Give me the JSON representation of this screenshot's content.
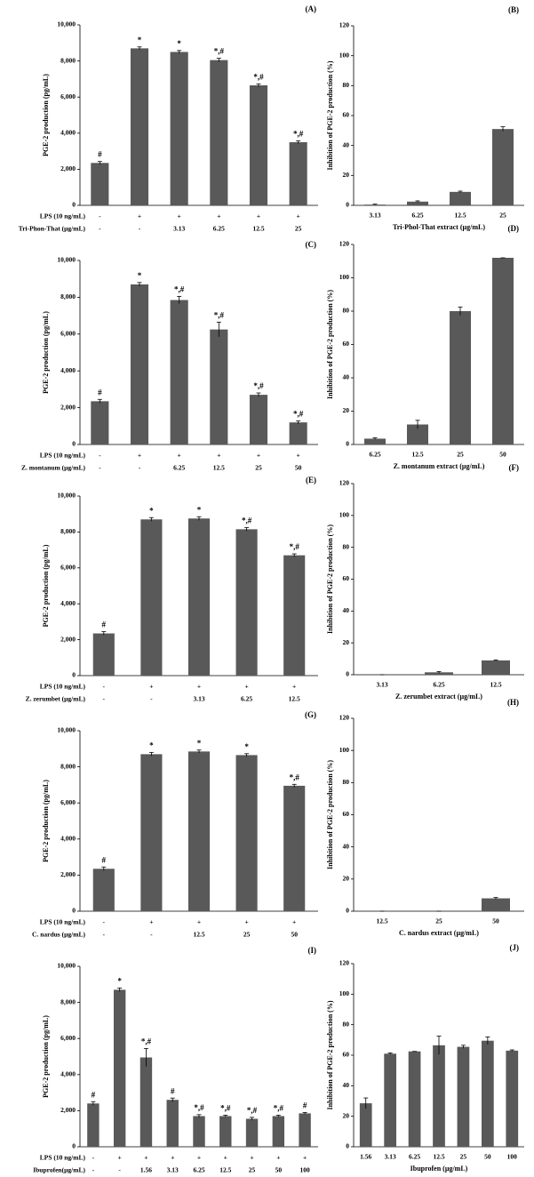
{
  "chart_data": [
    {
      "type": "bar",
      "panel": "(A)",
      "ylabel": "PGE-2 production (pg/mL)",
      "row_labels": [
        "LPS (10 ng/mL)",
        "Tri-Phon-That (µg/mL)"
      ],
      "lps": [
        "-",
        "+",
        "+",
        "+",
        "+",
        "+"
      ],
      "categories": [
        "-",
        "-",
        "3.13",
        "6.25",
        "12.5",
        "25"
      ],
      "values": [
        2350,
        8700,
        8500,
        8050,
        6650,
        3500
      ],
      "errors": [
        80,
        80,
        80,
        100,
        80,
        80
      ],
      "annotations": [
        "#",
        "*",
        "*",
        "*,#",
        "*,#",
        "*,#"
      ],
      "color": "#595959",
      "ylim": [
        0,
        10000
      ],
      "yticks": [
        0,
        {
          "value": 2000,
          "label": "2,000"
        },
        {
          "value": 4000,
          "label": "4,000"
        },
        {
          "value": 6000,
          "label": "6,000"
        },
        {
          "value": 8000,
          "label": "8,000"
        },
        {
          "value": 10000,
          "label": "10,000"
        }
      ]
    },
    {
      "type": "bar",
      "panel": "(B)",
      "ylabel": "Inhibition of PGE-2 production (%)",
      "xlabel": "Tri-Phol-That extract (µg/mL)",
      "categories": [
        "3.13",
        "6.25",
        "12.5",
        "25"
      ],
      "values": [
        0.5,
        2.5,
        9,
        51
      ],
      "errors": [
        0.3,
        0.5,
        0.5,
        1.5
      ],
      "color": "#595959",
      "ylim": [
        0,
        120
      ],
      "yticks": [
        0,
        20,
        40,
        60,
        80,
        100,
        120
      ]
    },
    {
      "type": "bar",
      "panel": "(C)",
      "ylabel": "PGE-2 production (pg/mL)",
      "row_labels": [
        "LPS (10 ng/mL)",
        "Z. montanum (µg/mL)"
      ],
      "lps": [
        "-",
        "+",
        "+",
        "+",
        "+",
        "+"
      ],
      "categories": [
        "-",
        "-",
        "6.25",
        "12.5",
        "25",
        "50"
      ],
      "values": [
        2350,
        8700,
        7850,
        6250,
        2700,
        1200
      ],
      "errors": [
        100,
        100,
        200,
        400,
        100,
        80
      ],
      "annotations": [
        "#",
        "*",
        "*,#",
        "*,#",
        "*,#",
        "*,#"
      ],
      "color": "#595959",
      "ylim": [
        0,
        10000
      ],
      "yticks": [
        0,
        {
          "value": 2000,
          "label": "2,000"
        },
        {
          "value": 4000,
          "label": "4,000"
        },
        {
          "value": 6000,
          "label": "6,000"
        },
        {
          "value": 8000,
          "label": "8,000"
        },
        {
          "value": 10000,
          "label": "10,000"
        }
      ]
    },
    {
      "type": "bar",
      "panel": "(D)",
      "ylabel": "Inhibition of PGE-2 production (%)",
      "xlabel": "Z. montanum extract (µg/mL)",
      "categories": [
        "6.25",
        "12.5",
        "25",
        "50"
      ],
      "values": [
        3.5,
        12,
        80,
        112
      ],
      "errors": [
        0.5,
        2.5,
        2.5,
        0
      ],
      "color": "#595959",
      "ylim": [
        0,
        120
      ],
      "yticks": [
        0,
        20,
        40,
        60,
        80,
        100,
        120
      ]
    },
    {
      "type": "bar",
      "panel": "(E)",
      "ylabel": "PGE-2 production (pg/mL)",
      "row_labels": [
        "LPS (10 ng/mL)",
        "Z. zerumbet (µg/mL)"
      ],
      "lps": [
        "-",
        "+",
        "+",
        "+",
        "+"
      ],
      "categories": [
        "-",
        "-",
        "3.13",
        "6.25",
        "12.5"
      ],
      "values": [
        2350,
        8700,
        8750,
        8150,
        6700
      ],
      "errors": [
        100,
        100,
        100,
        100,
        80
      ],
      "annotations": [
        "#",
        "*",
        "*",
        "*,#",
        "*,#"
      ],
      "color": "#595959",
      "ylim": [
        0,
        10000
      ],
      "yticks": [
        0,
        {
          "value": 2000,
          "label": "2,000"
        },
        {
          "value": 4000,
          "label": "4,000"
        },
        {
          "value": 6000,
          "label": "6,000"
        },
        {
          "value": 8000,
          "label": "8,000"
        },
        {
          "value": 10000,
          "label": "10,000"
        }
      ]
    },
    {
      "type": "bar",
      "panel": "(F)",
      "ylabel": "Inhibition of PGE-2 production (%)",
      "xlabel": "Z. zerumbet extract (µg/mL)",
      "categories": [
        "3.13",
        "6.25",
        "12.5"
      ],
      "values": [
        0,
        1.5,
        9
      ],
      "errors": [
        0,
        0.5,
        0.3
      ],
      "color": "#595959",
      "ylim": [
        0,
        120
      ],
      "yticks": [
        0,
        20,
        40,
        60,
        80,
        100,
        120
      ]
    },
    {
      "type": "bar",
      "panel": "(G)",
      "ylabel": "PGE-2 production (pg/mL)",
      "row_labels": [
        "LPS (10 ng/mL)",
        "C. nardus (µg/mL)"
      ],
      "lps": [
        "-",
        "+",
        "+",
        "+",
        "+"
      ],
      "categories": [
        "-",
        "-",
        "12.5",
        "25",
        "50"
      ],
      "values": [
        2350,
        8700,
        8850,
        8650,
        6950
      ],
      "errors": [
        100,
        100,
        80,
        80,
        80
      ],
      "annotations": [
        "#",
        "*",
        "*",
        "*",
        "*,#"
      ],
      "color": "#595959",
      "ylim": [
        0,
        10000
      ],
      "yticks": [
        0,
        {
          "value": 2000,
          "label": "2,000"
        },
        {
          "value": 4000,
          "label": "4,000"
        },
        {
          "value": 6000,
          "label": "6,000"
        },
        {
          "value": 8000,
          "label": "8,000"
        },
        {
          "value": 10000,
          "label": "10,000"
        }
      ]
    },
    {
      "type": "bar",
      "panel": "(H)",
      "ylabel": "Inhibition of PGE-2 production (%)",
      "xlabel": "C. nardus extract (µg/mL)",
      "categories": [
        "12.5",
        "25",
        "50"
      ],
      "values": [
        0,
        0,
        8
      ],
      "errors": [
        0,
        0,
        0.5
      ],
      "color": "#595959",
      "ylim": [
        0,
        120
      ],
      "yticks": [
        0,
        20,
        40,
        60,
        80,
        100,
        120
      ]
    },
    {
      "type": "bar",
      "panel": "(I)",
      "ylabel": "PGE-2 production (pg/mL)",
      "row_labels": [
        "LPS (10 ng/mL)",
        "Ibuprofen(µg/mL)"
      ],
      "lps": [
        "-",
        "+",
        "+",
        "+",
        "+",
        "+",
        "+",
        "+",
        "+"
      ],
      "categories": [
        "-",
        "-",
        "1.56",
        "3.13",
        "6.25",
        "12.5",
        "25",
        "50",
        "100"
      ],
      "values": [
        2400,
        8700,
        4950,
        2600,
        1700,
        1700,
        1550,
        1700,
        1850
      ],
      "errors": [
        100,
        100,
        500,
        100,
        80,
        50,
        80,
        50,
        50
      ],
      "annotations": [
        "#",
        "*",
        "*,#",
        "#",
        "*,#",
        "*,#",
        "*,#",
        "*,#",
        "#"
      ],
      "color": "#595959",
      "ylim": [
        0,
        10000
      ],
      "yticks": [
        0,
        {
          "value": 2000,
          "label": "2,000"
        },
        {
          "value": 4000,
          "label": "4,000"
        },
        {
          "value": 6000,
          "label": "6,000"
        },
        {
          "value": 8000,
          "label": "8,000"
        },
        {
          "value": 10000,
          "label": "10,000"
        }
      ]
    },
    {
      "type": "bar",
      "panel": "(J)",
      "ylabel": "Inhibition of PGE-2 production (%)",
      "xlabel": "Ibuprofen (µg/mL)",
      "categories": [
        "1.56",
        "3.13",
        "6.25",
        "12.5",
        "25",
        "50",
        "100"
      ],
      "values": [
        28.5,
        61,
        62.5,
        66.5,
        65.5,
        69.5,
        63
      ],
      "errors": [
        3.5,
        0.5,
        0,
        6,
        1,
        2.5,
        0.5
      ],
      "color": "#595959",
      "ylim": [
        0,
        120
      ],
      "yticks": [
        0,
        20,
        40,
        60,
        80,
        100,
        120
      ]
    }
  ]
}
